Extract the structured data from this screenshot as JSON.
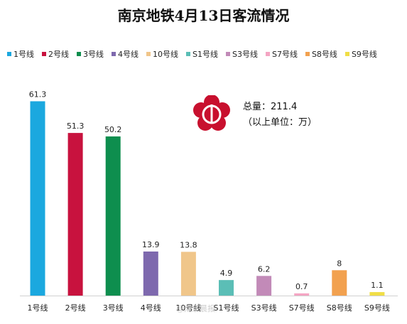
{
  "title": "南京地铁4月13日客流情况",
  "summary": {
    "total_label": "总量：",
    "total_value": "211.4",
    "unit_note": "（以上单位：万）"
  },
  "watermark": "@南京晨报",
  "chart_data": {
    "type": "bar",
    "title": "南京地铁4月13日客流情况",
    "categories": [
      "1号线",
      "2号线",
      "3号线",
      "4号线",
      "10号线",
      "S1号线",
      "S3号线",
      "S7号线",
      "S8号线",
      "S9号线"
    ],
    "values": [
      61.3,
      51.3,
      50.2,
      13.9,
      13.8,
      4.9,
      6.2,
      0.7,
      8,
      1.1
    ],
    "value_labels": [
      "61.3",
      "51.3",
      "50.2",
      "13.9",
      "13.8",
      "4.9",
      "6.2",
      "0.7",
      "8",
      "1.1"
    ],
    "colors": [
      "#1BA8DF",
      "#C8123E",
      "#0E8E4E",
      "#7E69AE",
      "#F0C68A",
      "#5BBEB6",
      "#C28AB8",
      "#F4A5C3",
      "#F2A14F",
      "#F0DE46"
    ],
    "legend": [
      "1号线",
      "2号线",
      "3号线",
      "4号线",
      "10号线",
      "S1号线",
      "S3号线",
      "S7号线",
      "S8号线",
      "S9号线"
    ],
    "legend_position": "top",
    "grid": false,
    "ylim": [
      0,
      65
    ],
    "xlabel": "",
    "ylabel": ""
  }
}
